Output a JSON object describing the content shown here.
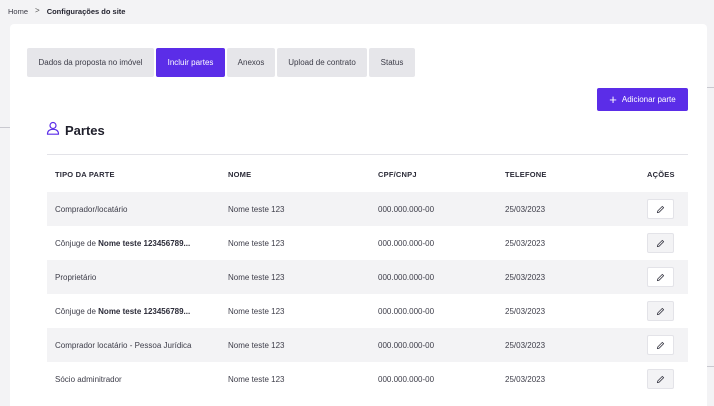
{
  "breadcrumb": {
    "home": "Home",
    "separator": ">",
    "current": "Configurações do site"
  },
  "tabs": [
    {
      "label": "Dados da proposta no imóvel",
      "active": false
    },
    {
      "label": "Incluir partes",
      "active": true
    },
    {
      "label": "Anexos",
      "active": false
    },
    {
      "label": "Upload de contrato",
      "active": false
    },
    {
      "label": "Status",
      "active": false
    }
  ],
  "add_button": {
    "label": "Adicionar parte",
    "icon": "plus-icon"
  },
  "section": {
    "title": "Partes",
    "icon": "user-icon"
  },
  "table": {
    "headers": [
      "TIPO DA PARTE",
      "NOME",
      "CPF/CNPJ",
      "TELEFONE",
      "AÇÕES"
    ],
    "rows": [
      {
        "tipo": "Comprador/locatário",
        "tipo_bold": "",
        "nome": "Nome teste 123",
        "cpf": "000.000.000-00",
        "telefone": "25/03/2023"
      },
      {
        "tipo": "Cônjuge de ",
        "tipo_bold": "Nome teste 123456789...",
        "nome": "Nome teste 123",
        "cpf": "000.000.000-00",
        "telefone": "25/03/2023"
      },
      {
        "tipo": "Proprietário",
        "tipo_bold": "",
        "nome": "Nome teste 123",
        "cpf": "000.000.000-00",
        "telefone": "25/03/2023"
      },
      {
        "tipo": "Cônjuge de ",
        "tipo_bold": "Nome teste 123456789...",
        "nome": "Nome teste 123",
        "cpf": "000.000.000-00",
        "telefone": "25/03/2023"
      },
      {
        "tipo": "Comprador locatário - Pessoa Jurídica",
        "tipo_bold": "",
        "nome": "Nome teste 123",
        "cpf": "000.000.000-00",
        "telefone": "25/03/2023"
      },
      {
        "tipo": "Sócio adminitrador",
        "tipo_bold": "",
        "nome": "Nome teste 123",
        "cpf": "000.000.000-00",
        "telefone": "25/03/2023"
      }
    ],
    "action_icon": "pencil-icon"
  },
  "colors": {
    "accent": "#5b2de8",
    "background": "#f3f3f5",
    "card": "#ffffff"
  }
}
